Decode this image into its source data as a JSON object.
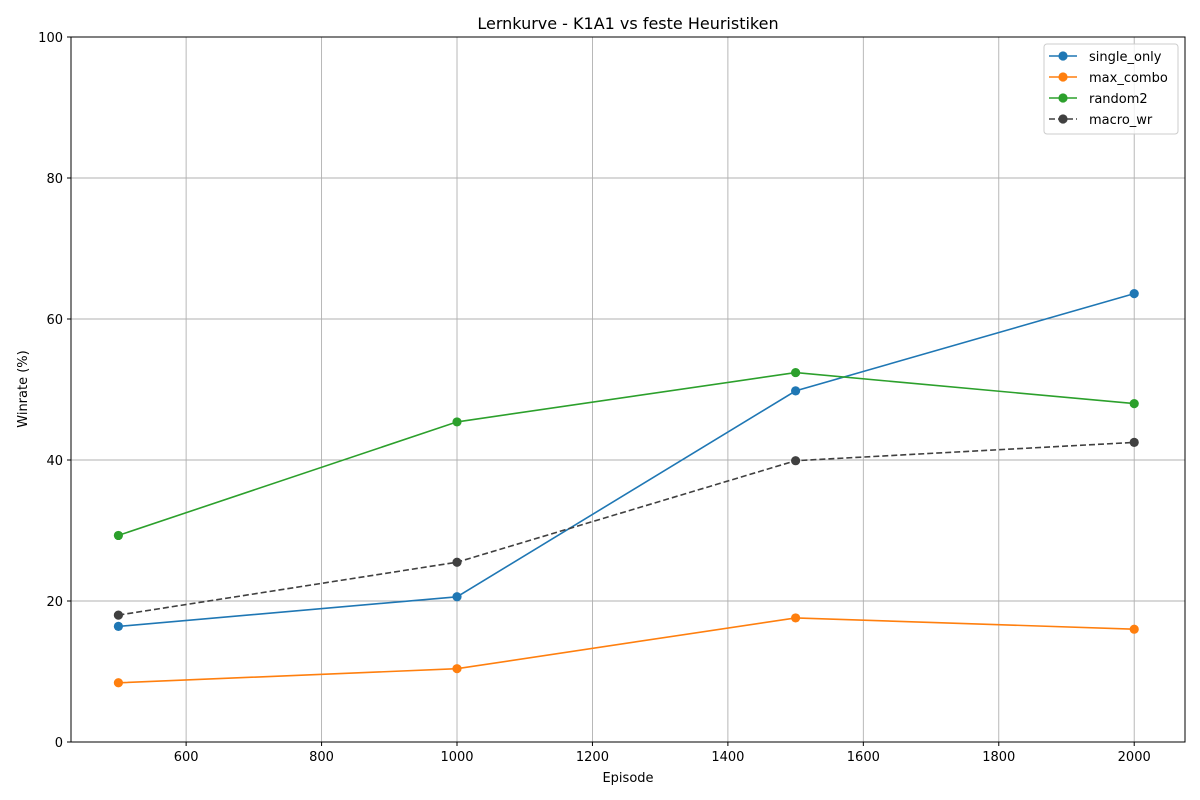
{
  "chart_data": {
    "type": "line",
    "title": "Lernkurve - K1A1 vs feste Heuristiken",
    "xlabel": "Episode",
    "ylabel": "Winrate (%)",
    "xlim": [
      430,
      2075
    ],
    "ylim": [
      0,
      100
    ],
    "xticks": [
      600,
      800,
      1000,
      1200,
      1400,
      1600,
      1800,
      2000
    ],
    "yticks": [
      0,
      20,
      40,
      60,
      80,
      100
    ],
    "grid": true,
    "legend_position": "top-right",
    "x": [
      500,
      1000,
      1500,
      2000
    ],
    "series": [
      {
        "name": "single_only",
        "values": [
          16.4,
          20.6,
          49.8,
          63.6
        ],
        "color": "#1f77b4",
        "dashed": false
      },
      {
        "name": "max_combo",
        "values": [
          8.4,
          10.4,
          17.6,
          16.0
        ],
        "color": "#ff7f0e",
        "dashed": false
      },
      {
        "name": "random2",
        "values": [
          29.3,
          45.4,
          52.4,
          48.0
        ],
        "color": "#2ca02c",
        "dashed": false
      },
      {
        "name": "macro_wr",
        "values": [
          18.0,
          25.5,
          39.9,
          42.5
        ],
        "color": "#404040",
        "dashed": true
      }
    ]
  }
}
